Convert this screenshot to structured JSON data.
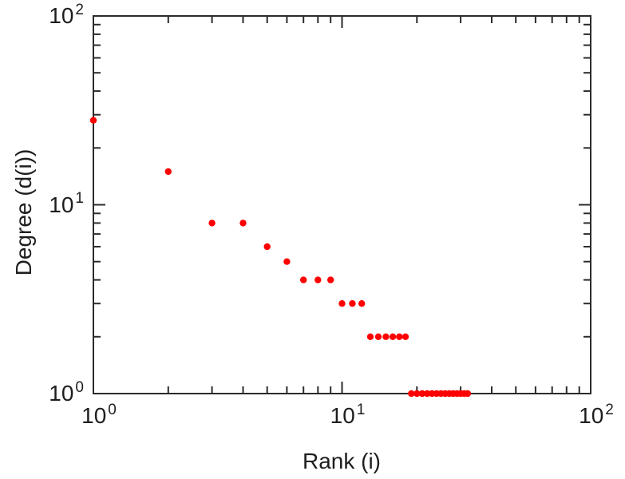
{
  "chart_data": {
    "type": "scatter",
    "title": "",
    "xlabel": "Rank (i)",
    "ylabel": "Degree (d(i))",
    "x_scale": "log",
    "y_scale": "log",
    "xlim": [
      1,
      100
    ],
    "ylim": [
      1,
      100
    ],
    "grid": false,
    "legend": null,
    "marker_color": "#ff0000",
    "axis_color": "#2b2b2b",
    "x": [
      1,
      2,
      3,
      4,
      5,
      6,
      7,
      8,
      9,
      10,
      11,
      12,
      13,
      14,
      15,
      16,
      17,
      18,
      19,
      20,
      21,
      22,
      23,
      24,
      25,
      26,
      27,
      28,
      29,
      30,
      31,
      32
    ],
    "y": [
      28,
      15,
      8,
      8,
      6,
      5,
      4,
      4,
      4,
      3,
      3,
      3,
      2,
      2,
      2,
      2,
      2,
      2,
      1,
      1,
      1,
      1,
      1,
      1,
      1,
      1,
      1,
      1,
      1,
      1,
      1,
      1
    ],
    "x_ticks": [
      {
        "base": "10",
        "exp": "0",
        "value": 1
      },
      {
        "base": "10",
        "exp": "1",
        "value": 10
      },
      {
        "base": "10",
        "exp": "2",
        "value": 100
      }
    ],
    "y_ticks": [
      {
        "base": "10",
        "exp": "0",
        "value": 1
      },
      {
        "base": "10",
        "exp": "1",
        "value": 10
      },
      {
        "base": "10",
        "exp": "2",
        "value": 100
      }
    ]
  }
}
